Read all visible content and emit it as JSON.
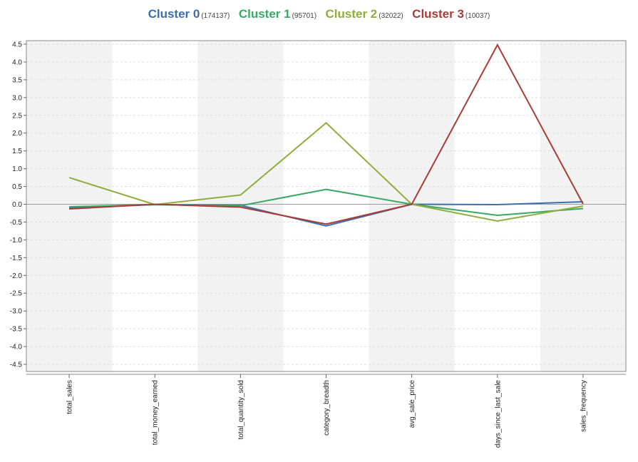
{
  "chart_data": {
    "type": "line",
    "title": "",
    "xlabel": "",
    "ylabel": "",
    "categories": [
      "total_sales",
      "total_money_earned",
      "total_quantity_sold",
      "category_breadth",
      "avg_sale_price",
      "days_since_last_sale",
      "sales_frequency"
    ],
    "ylim": [
      -4.7,
      4.6
    ],
    "yticks": [
      4.5,
      4.0,
      3.5,
      3.0,
      2.5,
      2.0,
      1.5,
      1.0,
      0.5,
      0.0,
      -0.5,
      -1.0,
      -1.5,
      -2.0,
      -2.5,
      -3.0,
      -3.5,
      -4.0,
      -4.5
    ],
    "ytick_labels": [
      "4.5",
      "4.0",
      "3.5",
      "3.0",
      "2.5",
      "2.0",
      "1.5",
      "1.0",
      "0.5",
      "0.0",
      "-0.5",
      "-1.0",
      "-1.5",
      "-2.0",
      "-2.5",
      "-3.0",
      "-3.5",
      "-4.0",
      "-4.5"
    ],
    "grid": true,
    "legend_position": "top-center",
    "series": [
      {
        "name": "Cluster 0",
        "count": "(174137)",
        "color": "#3b6fb0",
        "values": [
          -0.1,
          -0.01,
          -0.03,
          -0.61,
          0.0,
          -0.01,
          0.07
        ]
      },
      {
        "name": "Cluster 1",
        "count": "(95701)",
        "color": "#3aa864",
        "values": [
          -0.07,
          -0.01,
          -0.04,
          0.42,
          0.0,
          -0.31,
          -0.12
        ]
      },
      {
        "name": "Cluster 2",
        "count": "(32022)",
        "color": "#8fad3c",
        "values": [
          0.75,
          -0.01,
          0.26,
          2.29,
          0.0,
          -0.47,
          -0.05
        ]
      },
      {
        "name": "Cluster 3",
        "count": "(10037)",
        "color": "#a83c37",
        "values": [
          -0.13,
          0.0,
          -0.08,
          -0.56,
          0.0,
          4.48,
          0.01
        ]
      }
    ]
  }
}
